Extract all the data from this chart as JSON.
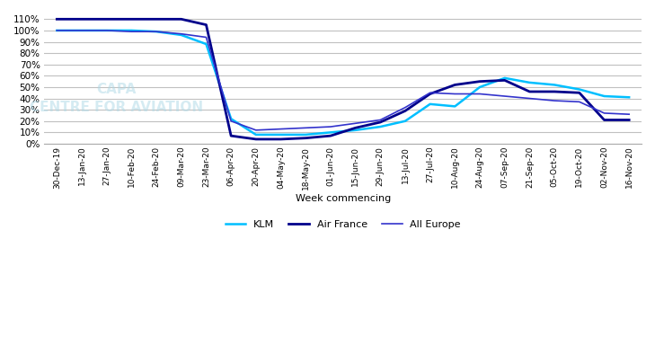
{
  "title": "",
  "xlabel": "Week commencing",
  "ylabel": "",
  "xlabels": [
    "30-Dec-19",
    "13-Jan-20",
    "27-Jan-20",
    "10-Feb-20",
    "24-Feb-20",
    "09-Mar-20",
    "23-Mar-20",
    "06-Apr-20",
    "20-Apr-20",
    "04-May-20",
    "18-May-20",
    "01-Jun-20",
    "15-Jun-20",
    "29-Jun-20",
    "13-Jul-20",
    "27-Jul-20",
    "10-Aug-20",
    "24-Aug-20",
    "07-Sep-20",
    "21-Sep-20",
    "05-Oct-20",
    "19-Oct-20",
    "02-Nov-20",
    "16-Nov-20"
  ],
  "klm": [
    100,
    100,
    100,
    100,
    99,
    96,
    88,
    22,
    8,
    8,
    8,
    10,
    12,
    15,
    20,
    35,
    33,
    50,
    58,
    54,
    52,
    48,
    42,
    41
  ],
  "air_france": [
    110,
    110,
    110,
    110,
    110,
    110,
    105,
    7,
    4,
    4,
    5,
    7,
    14,
    19,
    29,
    44,
    52,
    55,
    56,
    46,
    46,
    45,
    21,
    21
  ],
  "all_europe": [
    100,
    100,
    100,
    99,
    99,
    97,
    94,
    20,
    12,
    13,
    14,
    15,
    18,
    21,
    32,
    45,
    44,
    44,
    42,
    40,
    38,
    37,
    27,
    26
  ],
  "klm_color": "#00BFFF",
  "air_france_color": "#00008B",
  "all_europe_color": "#3333CC",
  "bg_color": "#FFFFFF",
  "grid_color": "#C0C0C0",
  "ylim": [
    0,
    115
  ],
  "yticks": [
    0,
    10,
    20,
    30,
    40,
    50,
    60,
    70,
    80,
    90,
    100,
    110
  ],
  "legend_labels": [
    "KLM",
    "Air France",
    "All Europe"
  ],
  "watermark": "CAPA\nCENTRE FOR AVIATION"
}
